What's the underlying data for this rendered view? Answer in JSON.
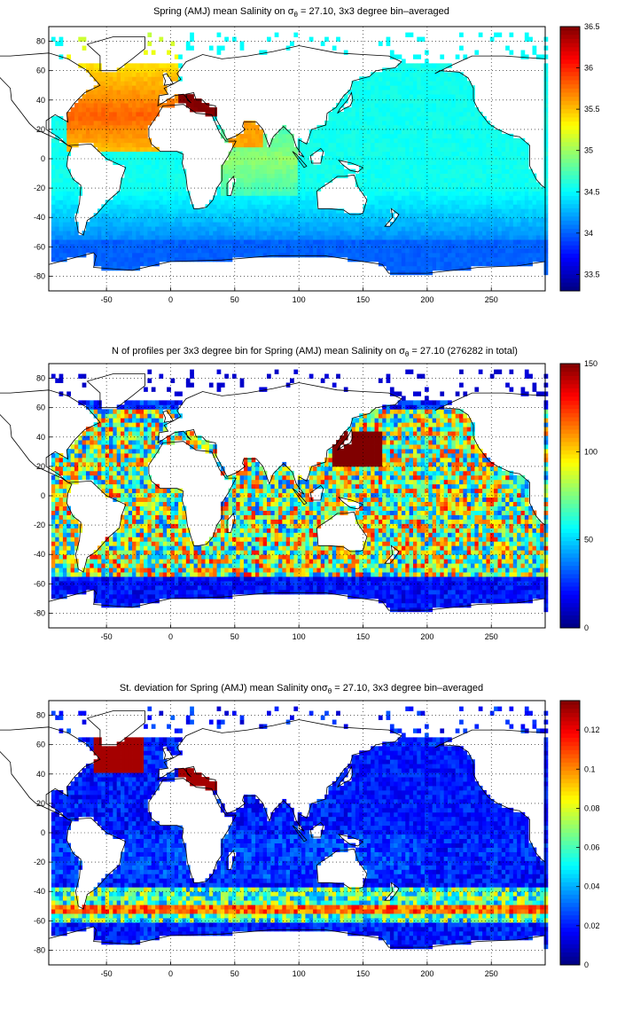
{
  "chart_data": [
    {
      "type": "heatmap",
      "title_main": "Spring (AMJ) mean Salinity on ",
      "title_sigma": "σ",
      "title_sub": "θ",
      "title_rest": " = 27.10, 3x3 degree bin–averaged",
      "x_ticks": [
        -50,
        0,
        50,
        100,
        150,
        200,
        250
      ],
      "y_ticks": [
        80,
        60,
        40,
        20,
        0,
        -20,
        -40,
        -60,
        -80
      ],
      "xlim": [
        -95,
        292
      ],
      "ylim": [
        -90,
        90
      ],
      "colorbar": {
        "min": 33.3,
        "max": 36.5,
        "ticks": [
          36.5,
          36,
          35.5,
          35,
          34.5,
          34,
          33.5
        ]
      },
      "grid": true
    },
    {
      "type": "heatmap",
      "title_main": "N of profiles per 3x3 degree bin for Spring (AMJ) mean Salinity on ",
      "title_sigma": "σ",
      "title_sub": "θ",
      "title_rest": " = 27.10 (276282 in total)",
      "x_ticks": [
        -50,
        0,
        50,
        100,
        150,
        200,
        250
      ],
      "y_ticks": [
        80,
        60,
        40,
        20,
        0,
        -20,
        -40,
        -60,
        -80
      ],
      "xlim": [
        -95,
        292
      ],
      "ylim": [
        -90,
        90
      ],
      "colorbar": {
        "min": 0,
        "max": 150,
        "ticks": [
          150,
          100,
          50,
          0
        ]
      },
      "grid": true
    },
    {
      "type": "heatmap",
      "title_main": "St. deviation for Spring (AMJ) mean Salinity on",
      "title_sigma": "σ",
      "title_sub": "θ",
      "title_rest": " = 27.10, 3x3 degree bin–averaged",
      "x_ticks": [
        -50,
        0,
        50,
        100,
        150,
        200,
        250
      ],
      "y_ticks": [
        80,
        60,
        40,
        20,
        0,
        -20,
        -40,
        -60,
        -80
      ],
      "xlim": [
        -95,
        292
      ],
      "ylim": [
        -90,
        90
      ],
      "colorbar": {
        "min": 0,
        "max": 0.135,
        "ticks": [
          0.12,
          0.1,
          0.08,
          0.06,
          0.04,
          0.02,
          0
        ]
      },
      "grid": true
    }
  ]
}
